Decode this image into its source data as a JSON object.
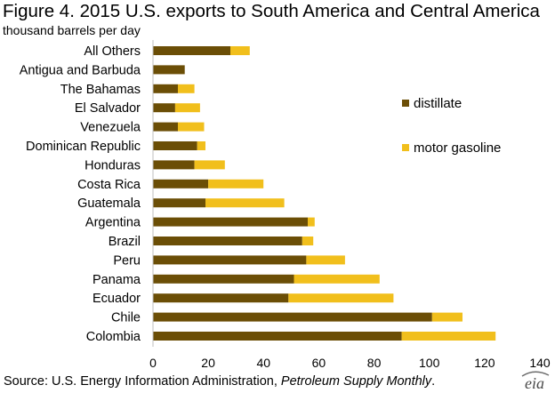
{
  "header": {
    "title": "Figure 4. 2015 U.S. exports to South America and Central America",
    "subtitle": "thousand barrels per day"
  },
  "footer": {
    "source_prefix": "Source: U.S. Energy Information Administration, ",
    "source_publication": "Petroleum Supply Monthly",
    "source_suffix": ".",
    "logo_text": "eia"
  },
  "colors": {
    "distillate": "#6b4e06",
    "motor_gasoline": "#f1bf1c",
    "axis": "#bfbfbf"
  },
  "chart_data": {
    "type": "bar",
    "orientation": "horizontal",
    "stacked": true,
    "categories": [
      "All Others",
      "Antigua and Barbuda",
      "The Bahamas",
      "El Salvador",
      "Venezuela",
      "Dominican Republic",
      "Honduras",
      "Costa Rica",
      "Guatemala",
      "Argentina",
      "Brazil",
      "Peru",
      "Panama",
      "Ecuador",
      "Chile",
      "Colombia"
    ],
    "series": [
      {
        "name": "distillate",
        "values": [
          28,
          11.5,
          9,
          8,
          9,
          16,
          15,
          20,
          19,
          56,
          54,
          55.5,
          51,
          49,
          101,
          90
        ]
      },
      {
        "name": "motor gasoline",
        "values": [
          7,
          0,
          6,
          9,
          9.5,
          3,
          11,
          20,
          28.5,
          2.5,
          4,
          14,
          31,
          38,
          11,
          34
        ]
      }
    ],
    "xlim": [
      0,
      140
    ],
    "xticks": [
      0,
      20,
      40,
      60,
      80,
      100,
      120,
      140
    ],
    "xlabel": "",
    "ylabel": "",
    "grid": false,
    "legend_position": "right"
  }
}
